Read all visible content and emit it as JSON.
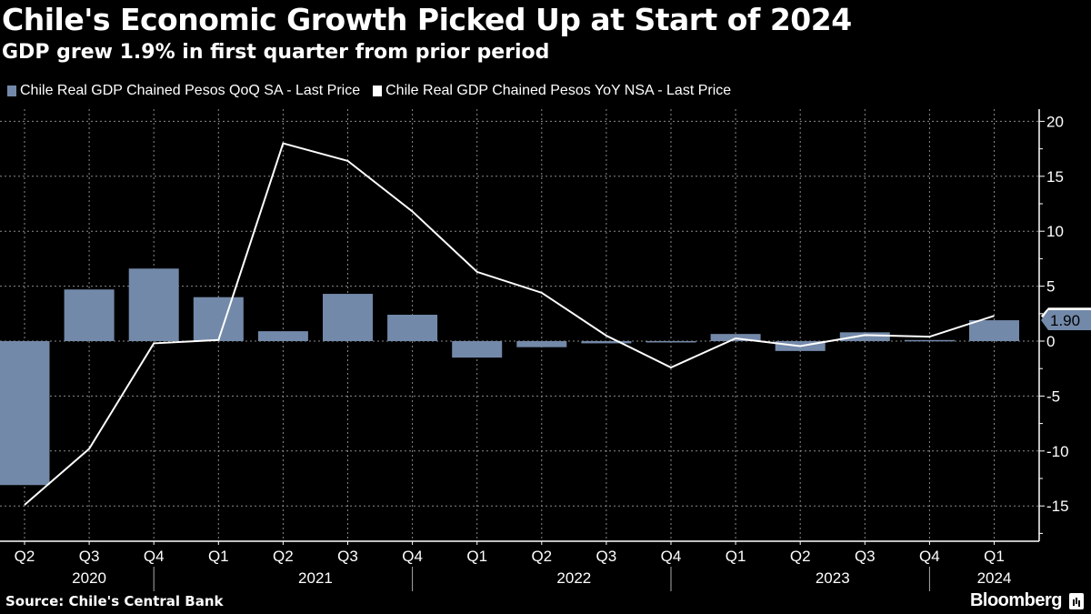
{
  "header": {
    "title": "Chile's Economic Growth Picked Up at Start of 2024",
    "subtitle": "GDP grew 1.9% in first quarter from prior period"
  },
  "footer": {
    "source": "Source: Chile's Central Bank",
    "brand": "Bloomberg"
  },
  "chart_data": {
    "type": "bar",
    "title": "Chile's Economic Growth Picked Up at Start of 2024",
    "subtitle": "GDP grew 1.9% in first quarter from prior period",
    "xlabel": "",
    "ylabel": "",
    "categories": [
      "Q2",
      "Q3",
      "Q4",
      "Q1",
      "Q2",
      "Q3",
      "Q4",
      "Q1",
      "Q2",
      "Q3",
      "Q4",
      "Q1",
      "Q2",
      "Q3",
      "Q4",
      "Q1"
    ],
    "year_groups": [
      {
        "label": "2020",
        "start": 0,
        "end": 2
      },
      {
        "label": "2021",
        "start": 3,
        "end": 6
      },
      {
        "label": "2022",
        "start": 7,
        "end": 10
      },
      {
        "label": "2023",
        "start": 11,
        "end": 14
      },
      {
        "label": "2024",
        "start": 15,
        "end": 15
      }
    ],
    "series": [
      {
        "name": "Chile Real GDP Chained Pesos QoQ SA - Last Price",
        "kind": "bar",
        "color": "#7389a9",
        "values": [
          -13.1,
          4.7,
          6.6,
          4.0,
          0.9,
          4.3,
          2.4,
          -1.5,
          -0.55,
          -0.2,
          -0.1,
          0.65,
          -0.9,
          0.8,
          0.1,
          1.9
        ]
      },
      {
        "name": "Chile Real GDP Chained Pesos YoY NSA - Last Price",
        "kind": "line",
        "color": "#ffffff",
        "values": [
          -14.9,
          -9.8,
          -0.2,
          0.1,
          18.0,
          16.4,
          11.8,
          6.3,
          4.4,
          0.5,
          -2.4,
          0.25,
          -0.45,
          0.55,
          0.4,
          2.3
        ]
      }
    ],
    "last_value_label": "1.90",
    "yticks": [
      20,
      15,
      10,
      5,
      0,
      -5,
      -10,
      -15
    ],
    "ylim": [
      -18,
      21
    ],
    "y_axis_side": "right",
    "grid": true,
    "legend_position": "top-left"
  }
}
